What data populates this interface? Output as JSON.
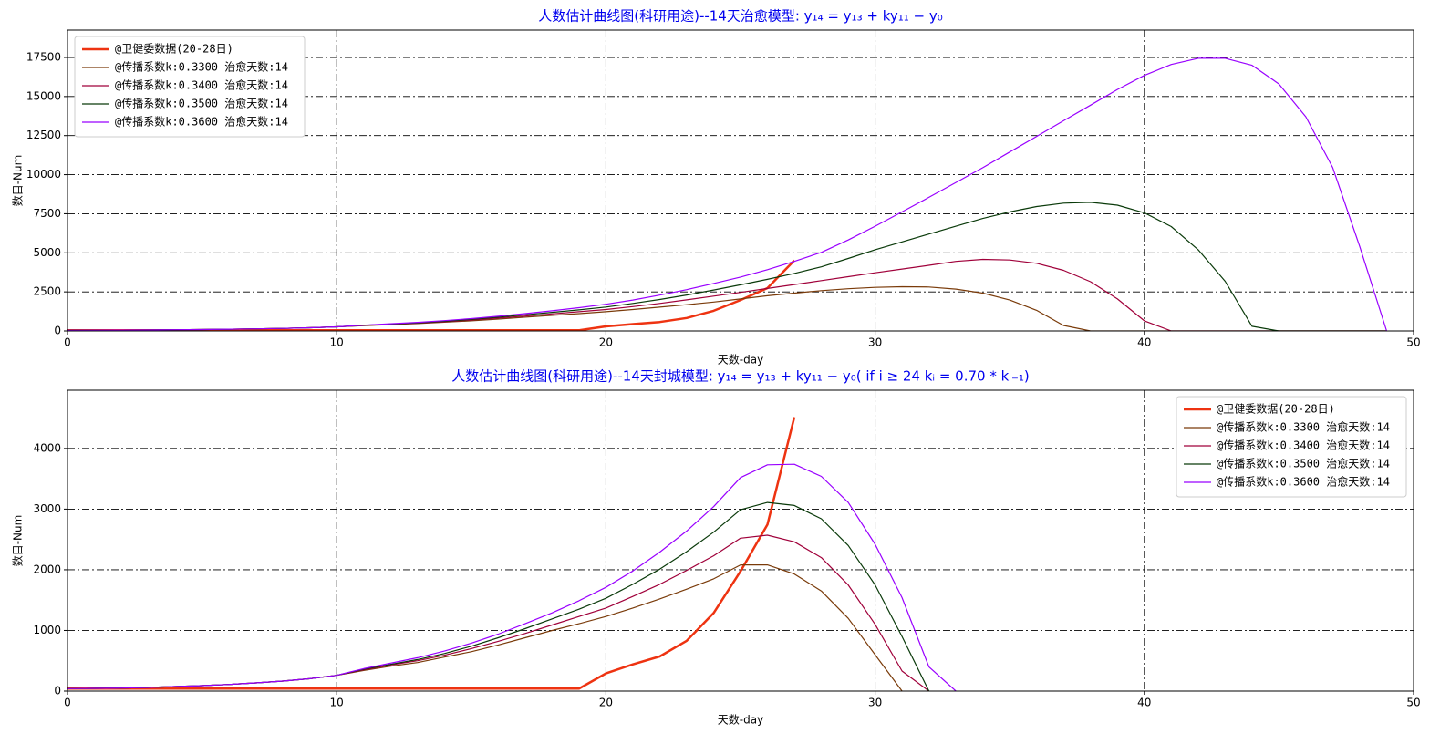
{
  "chart_data": [
    {
      "type": "line",
      "title": "人数估计曲线图(科研用途)--14天治愈模型: y₁₄ = y₁₃ + ky₁₁ − y₀",
      "xlabel": "天数-day",
      "ylabel": "数目-Num",
      "xlim": [
        0,
        50
      ],
      "ylim": [
        0,
        19250
      ],
      "xticks": [
        0,
        10,
        20,
        30,
        40,
        50
      ],
      "yticks": [
        0,
        2500,
        5000,
        7500,
        10000,
        12500,
        15000,
        17500
      ],
      "grid": true,
      "legend": "upper left",
      "x": [
        0,
        1,
        2,
        3,
        4,
        5,
        6,
        7,
        8,
        9,
        10,
        11,
        12,
        13,
        14,
        15,
        16,
        17,
        18,
        19,
        20,
        21,
        22,
        23,
        24,
        25,
        26,
        27,
        28,
        29,
        30,
        31,
        32,
        33,
        34,
        35,
        36,
        37,
        38,
        39,
        40,
        41,
        42,
        43,
        44,
        45,
        46,
        47,
        48,
        49
      ],
      "series": [
        {
          "name": "@卫健委数据(20-28日)",
          "color": "#ee3311",
          "line_width": 2.5,
          "values": [
            41,
            41,
            41,
            41,
            41,
            41,
            41,
            41,
            41,
            41,
            41,
            41,
            41,
            41,
            41,
            41,
            41,
            41,
            41,
            41,
            291,
            440,
            571,
            830,
            1287,
            1975,
            2744,
            4515,
            null,
            null,
            null,
            null,
            null,
            null,
            null,
            null,
            null,
            null,
            null,
            null,
            null,
            null,
            null,
            null,
            null,
            null,
            null,
            null,
            null,
            null
          ]
        },
        {
          "name": "@传播系数k:0.3300 治愈天数:14",
          "color": "#7a3b0a",
          "line_width": 1.2,
          "values": [
            41,
            45,
            50,
            60,
            75,
            90,
            110,
            135,
            165,
            205,
            260,
            340,
            410,
            470,
            560,
            650,
            760,
            880,
            1000,
            1110,
            1230,
            1370,
            1520,
            1680,
            1850,
            2050,
            2250,
            2420,
            2580,
            2700,
            2790,
            2830,
            2810,
            2680,
            2420,
            1980,
            1320,
            350,
            0,
            0,
            0,
            0,
            0,
            0,
            0,
            0,
            0,
            0,
            0,
            0
          ]
        },
        {
          "name": "@传播系数k:0.3400 治愈天数:14",
          "color": "#a0003a",
          "line_width": 1.2,
          "values": [
            41,
            45,
            50,
            60,
            75,
            90,
            110,
            135,
            165,
            205,
            260,
            350,
            430,
            500,
            590,
            700,
            820,
            950,
            1090,
            1230,
            1370,
            1560,
            1760,
            1990,
            2230,
            2470,
            2720,
            2970,
            3220,
            3470,
            3720,
            3960,
            4200,
            4450,
            4580,
            4540,
            4330,
            3880,
            3150,
            2050,
            650,
            0,
            0,
            0,
            0,
            0,
            0,
            0,
            0,
            0
          ]
        },
        {
          "name": "@传播系数k:0.3500 治愈天数:14",
          "color": "#0a3a0a",
          "line_width": 1.2,
          "values": [
            41,
            45,
            50,
            60,
            75,
            90,
            110,
            135,
            165,
            205,
            260,
            360,
            440,
            520,
            620,
            740,
            880,
            1030,
            1190,
            1350,
            1530,
            1760,
            2010,
            2300,
            2620,
            2950,
            3300,
            3680,
            4100,
            4640,
            5200,
            5700,
            6200,
            6700,
            7200,
            7620,
            7960,
            8180,
            8230,
            8050,
            7560,
            6680,
            5200,
            3180,
            300,
            0,
            0,
            0,
            0,
            0
          ]
        },
        {
          "name": "@传播系数k:0.3600 治愈天数:14",
          "color": "#9900ff",
          "line_width": 1.2,
          "values": [
            41,
            45,
            50,
            60,
            75,
            90,
            110,
            135,
            165,
            205,
            260,
            370,
            460,
            550,
            660,
            790,
            940,
            1110,
            1290,
            1490,
            1710,
            1980,
            2290,
            2640,
            3040,
            3450,
            3920,
            4450,
            5030,
            5820,
            6700,
            7620,
            8550,
            9500,
            10450,
            11450,
            12450,
            13450,
            14450,
            15450,
            16350,
            17050,
            17450,
            17450,
            17000,
            15800,
            13700,
            10450,
            5400,
            0
          ]
        }
      ]
    },
    {
      "type": "line",
      "title": "人数估计曲线图(科研用途)--14天封城模型: y₁₄ = y₁₃ + ky₁₁ − y₀( if i ≥ 24 kᵢ = 0.70 * kᵢ₋₁)",
      "xlabel": "天数-day",
      "ylabel": "数目-Num",
      "xlim": [
        0,
        50
      ],
      "ylim": [
        0,
        4960
      ],
      "xticks": [
        0,
        10,
        20,
        30,
        40,
        50
      ],
      "yticks": [
        0,
        1000,
        2000,
        3000,
        4000
      ],
      "grid": true,
      "legend": "upper right",
      "x": [
        0,
        1,
        2,
        3,
        4,
        5,
        6,
        7,
        8,
        9,
        10,
        11,
        12,
        13,
        14,
        15,
        16,
        17,
        18,
        19,
        20,
        21,
        22,
        23,
        24,
        25,
        26,
        27,
        28,
        29,
        30,
        31,
        32,
        33,
        34,
        35,
        36,
        37,
        38,
        39,
        40,
        41,
        42,
        43,
        44,
        45,
        46,
        47,
        48,
        49
      ],
      "series": [
        {
          "name": "@卫健委数据(20-28日)",
          "color": "#ee3311",
          "line_width": 2.5,
          "values": [
            41,
            41,
            41,
            41,
            41,
            41,
            41,
            41,
            41,
            41,
            41,
            41,
            41,
            41,
            41,
            41,
            41,
            41,
            41,
            41,
            291,
            440,
            571,
            830,
            1287,
            1975,
            2744,
            4515,
            null,
            null,
            null,
            null,
            null,
            null,
            null,
            null,
            null,
            null,
            null,
            null,
            null,
            null,
            null,
            null,
            null,
            null,
            null,
            null,
            null,
            null
          ]
        },
        {
          "name": "@传播系数k:0.3300 治愈天数:14",
          "color": "#7a3b0a",
          "line_width": 1.2,
          "values": [
            41,
            45,
            50,
            60,
            75,
            90,
            110,
            135,
            165,
            205,
            260,
            340,
            410,
            470,
            560,
            650,
            760,
            880,
            1000,
            1110,
            1230,
            1370,
            1520,
            1680,
            1850,
            2080,
            2080,
            1930,
            1650,
            1200,
            600,
            0,
            null,
            null,
            null,
            null,
            null,
            null,
            null,
            null,
            null,
            null,
            null,
            null,
            null,
            null,
            null,
            null,
            null,
            null
          ]
        },
        {
          "name": "@传播系数k:0.3400 治愈天数:14",
          "color": "#a0003a",
          "line_width": 1.2,
          "values": [
            41,
            45,
            50,
            60,
            75,
            90,
            110,
            135,
            165,
            205,
            260,
            350,
            430,
            500,
            590,
            700,
            820,
            950,
            1090,
            1230,
            1370,
            1560,
            1760,
            1990,
            2230,
            2520,
            2570,
            2460,
            2200,
            1750,
            1100,
            330,
            0,
            null,
            null,
            null,
            null,
            null,
            null,
            null,
            null,
            null,
            null,
            null,
            null,
            null,
            null,
            null,
            null,
            null
          ]
        },
        {
          "name": "@传播系数k:0.3500 治愈天数:14",
          "color": "#0a3a0a",
          "line_width": 1.2,
          "values": [
            41,
            45,
            50,
            60,
            75,
            90,
            110,
            135,
            165,
            205,
            260,
            360,
            440,
            520,
            620,
            740,
            880,
            1030,
            1190,
            1350,
            1530,
            1760,
            2010,
            2300,
            2620,
            2990,
            3110,
            3060,
            2840,
            2400,
            1750,
            900,
            0,
            null,
            null,
            null,
            null,
            null,
            null,
            null,
            null,
            null,
            null,
            null,
            null,
            null,
            null,
            null,
            null,
            null
          ]
        },
        {
          "name": "@传播系数k:0.3600 治愈天数:14",
          "color": "#9900ff",
          "line_width": 1.2,
          "values": [
            41,
            45,
            50,
            60,
            75,
            90,
            110,
            135,
            165,
            205,
            260,
            370,
            460,
            550,
            660,
            790,
            940,
            1110,
            1290,
            1490,
            1710,
            1980,
            2290,
            2640,
            3040,
            3520,
            3730,
            3740,
            3540,
            3110,
            2420,
            1540,
            400,
            0,
            null,
            null,
            null,
            null,
            null,
            null,
            null,
            null,
            null,
            null,
            null,
            null,
            null,
            null,
            null,
            null
          ]
        }
      ]
    }
  ]
}
